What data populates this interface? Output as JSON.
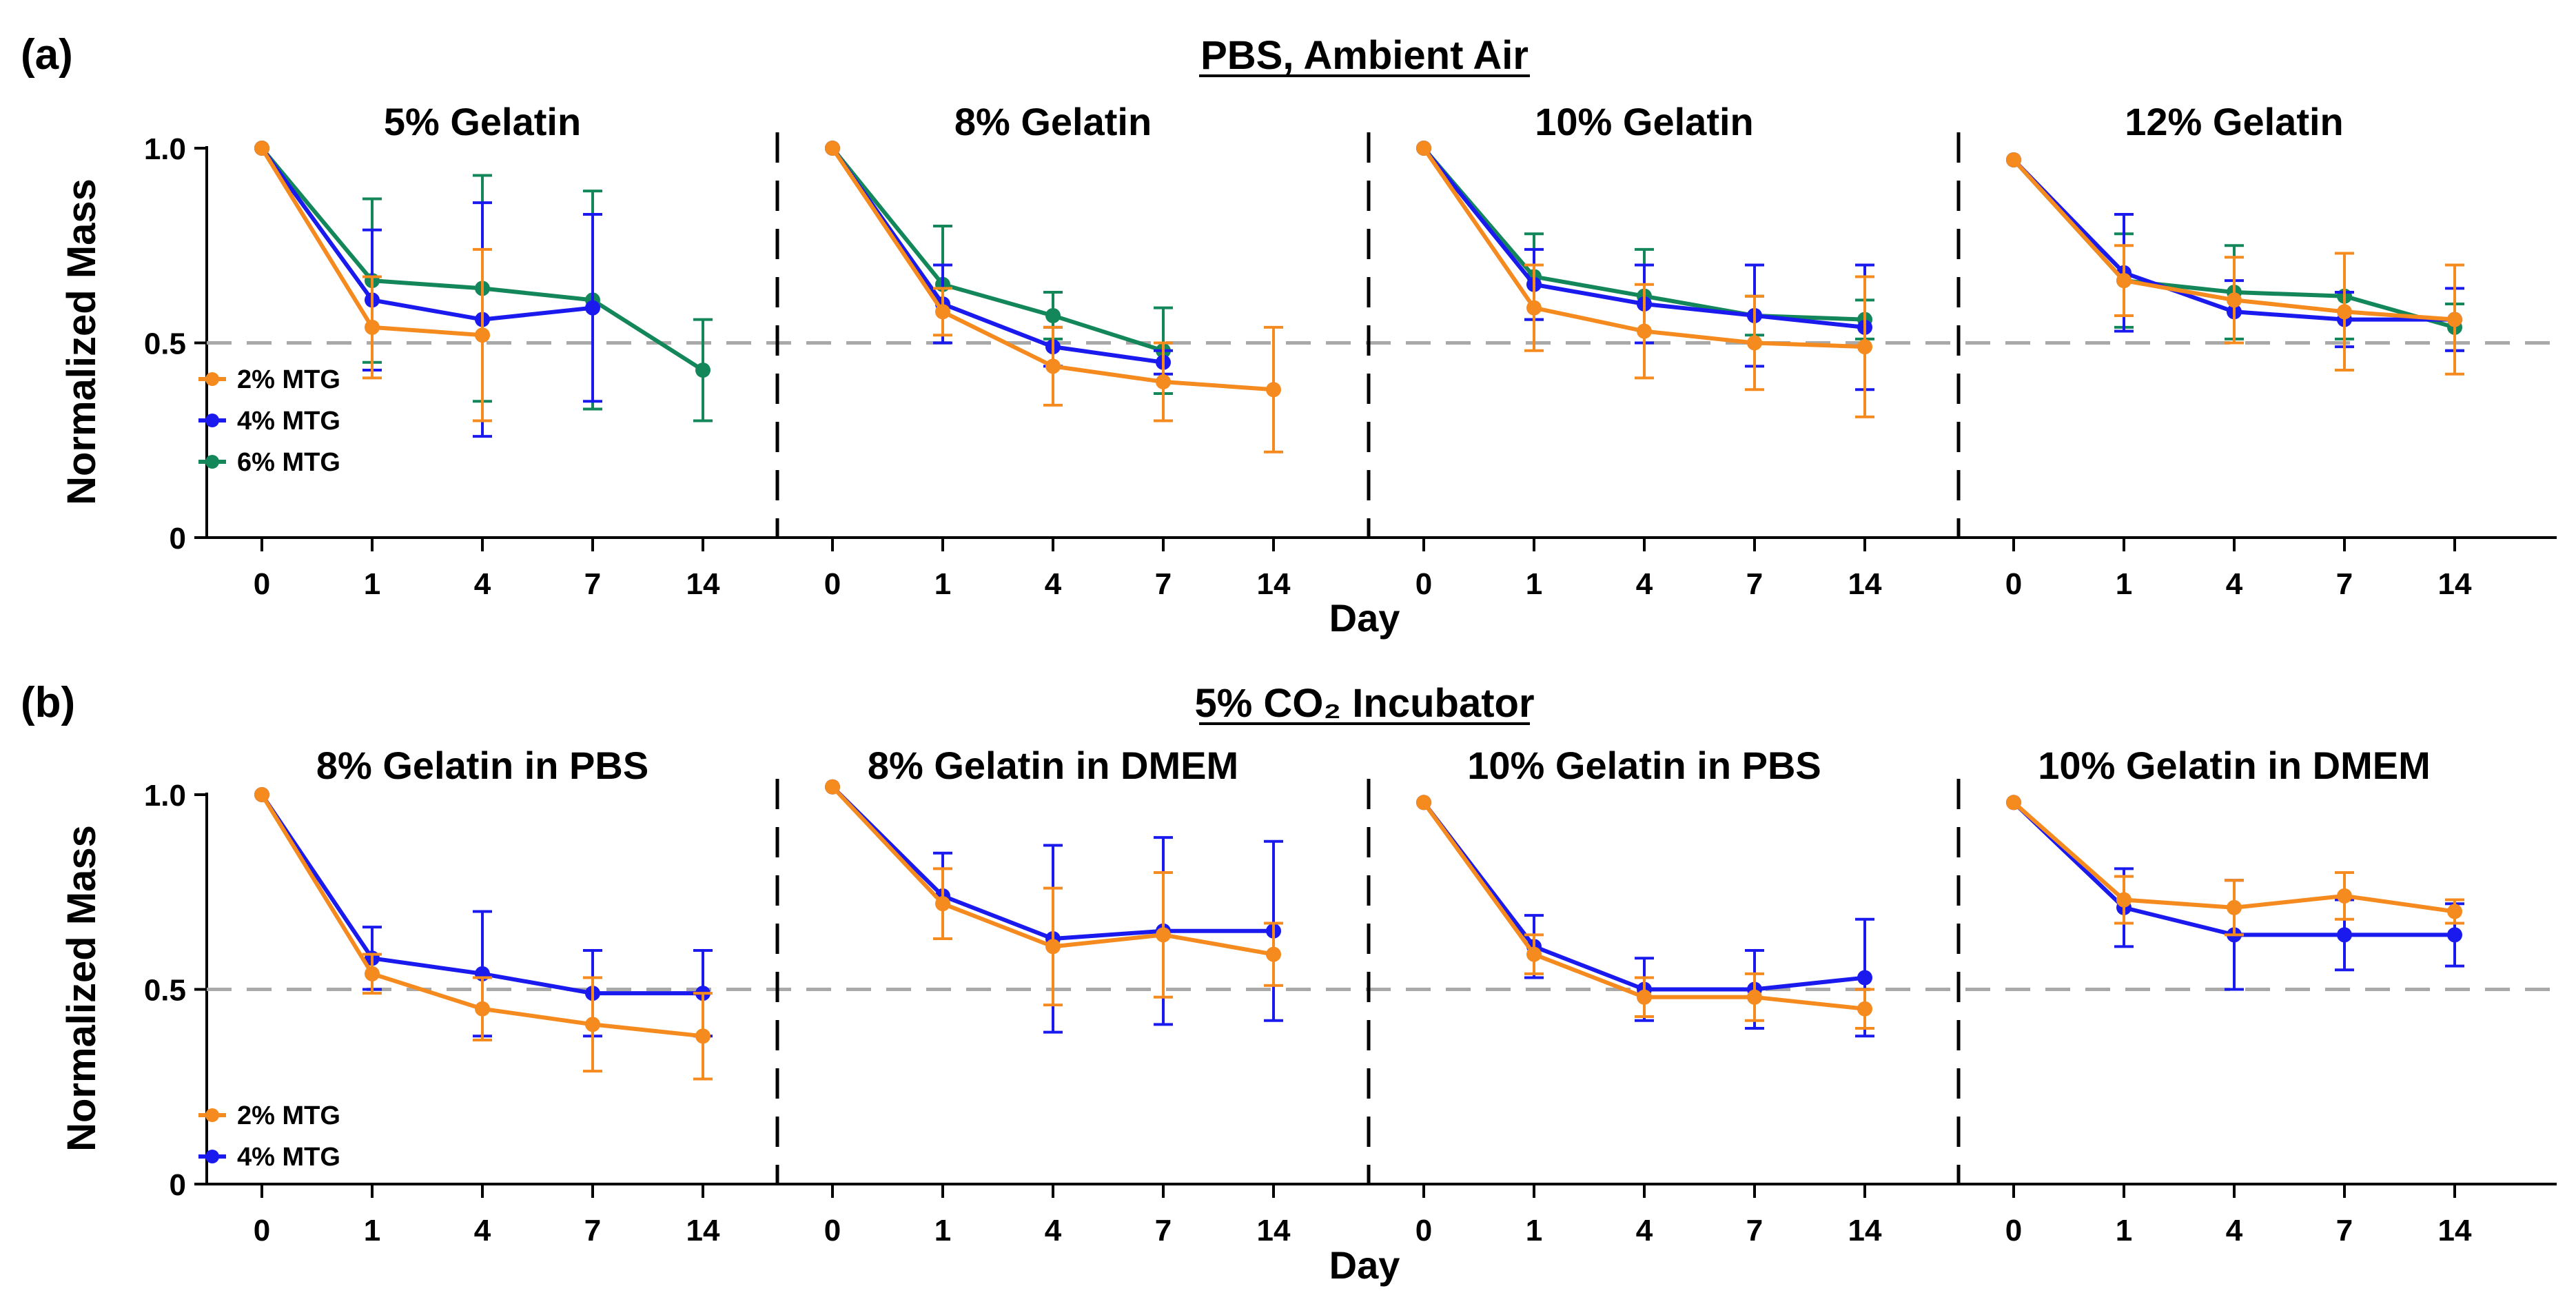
{
  "chart_data": {
    "type": "line",
    "x_categories": [
      "0",
      "1",
      "4",
      "7",
      "14"
    ],
    "ylim": [
      0,
      1.1
    ],
    "yticks": [
      "0",
      "0.5",
      "1.0"
    ],
    "ylabel": "Normalized Mass",
    "xlabel": "Day",
    "reference_line": 0.5,
    "colors": {
      "2% MTG": "#f58a1f",
      "4% MTG": "#1a1aee",
      "6% MTG": "#14875a"
    },
    "rows": [
      {
        "label": "(a)",
        "title": "PBS, Ambient Air",
        "legend": [
          "2% MTG",
          "4% MTG",
          "6% MTG"
        ],
        "panels": [
          {
            "title": "5% Gelatin",
            "series": [
              {
                "name": "6% MTG",
                "values": [
                  1.0,
                  0.66,
                  0.64,
                  0.61,
                  0.43
                ],
                "errors": [
                  0,
                  0.21,
                  0.29,
                  0.28,
                  0.13
                ]
              },
              {
                "name": "4% MTG",
                "values": [
                  1.0,
                  0.61,
                  0.56,
                  0.59,
                  null
                ],
                "errors": [
                  0,
                  0.18,
                  0.3,
                  0.24,
                  null
                ]
              },
              {
                "name": "2% MTG",
                "values": [
                  1.0,
                  0.54,
                  0.52,
                  null,
                  null
                ],
                "errors": [
                  0,
                  0.13,
                  0.22,
                  null,
                  null
                ]
              }
            ]
          },
          {
            "title": "8% Gelatin",
            "series": [
              {
                "name": "6% MTG",
                "values": [
                  1.0,
                  0.65,
                  0.57,
                  0.48,
                  null
                ],
                "errors": [
                  0,
                  0.15,
                  0.06,
                  0.11,
                  null
                ]
              },
              {
                "name": "4% MTG",
                "values": [
                  1.0,
                  0.6,
                  0.49,
                  0.45,
                  null
                ],
                "errors": [
                  0,
                  0.1,
                  0.05,
                  0.03,
                  null
                ]
              },
              {
                "name": "2% MTG",
                "values": [
                  1.0,
                  0.58,
                  0.44,
                  0.4,
                  0.38
                ],
                "errors": [
                  0,
                  0.06,
                  0.1,
                  0.1,
                  0.16
                ]
              }
            ]
          },
          {
            "title": "10% Gelatin",
            "series": [
              {
                "name": "6% MTG",
                "values": [
                  1.0,
                  0.67,
                  0.62,
                  0.57,
                  0.56
                ],
                "errors": [
                  0,
                  0.11,
                  0.12,
                  0.05,
                  0.05
                ]
              },
              {
                "name": "4% MTG",
                "values": [
                  1.0,
                  0.65,
                  0.6,
                  0.57,
                  0.54
                ],
                "errors": [
                  0,
                  0.09,
                  0.1,
                  0.13,
                  0.16
                ]
              },
              {
                "name": "2% MTG",
                "values": [
                  1.0,
                  0.59,
                  0.53,
                  0.5,
                  0.49
                ],
                "errors": [
                  0,
                  0.11,
                  0.12,
                  0.12,
                  0.18
                ]
              }
            ]
          },
          {
            "title": "12% Gelatin",
            "series": [
              {
                "name": "6% MTG",
                "values": [
                  0.97,
                  0.66,
                  0.63,
                  0.62,
                  0.54
                ],
                "errors": [
                  0,
                  0.12,
                  0.12,
                  0.11,
                  0.06
                ]
              },
              {
                "name": "4% MTG",
                "values": [
                  0.97,
                  0.68,
                  0.58,
                  0.56,
                  0.56
                ],
                "errors": [
                  0,
                  0.15,
                  0.08,
                  0.07,
                  0.08
                ]
              },
              {
                "name": "2% MTG",
                "values": [
                  0.97,
                  0.66,
                  0.61,
                  0.58,
                  0.56
                ],
                "errors": [
                  0,
                  0.09,
                  0.11,
                  0.15,
                  0.14
                ]
              }
            ]
          }
        ]
      },
      {
        "label": "(b)",
        "title": "5% CO₂ Incubator",
        "legend": [
          "2% MTG",
          "4% MTG"
        ],
        "panels": [
          {
            "title": "8% Gelatin in PBS",
            "series": [
              {
                "name": "4% MTG",
                "values": [
                  1.0,
                  0.58,
                  0.54,
                  0.49,
                  0.49
                ],
                "errors": [
                  0,
                  0.08,
                  0.16,
                  0.11,
                  0.11
                ]
              },
              {
                "name": "2% MTG",
                "values": [
                  1.0,
                  0.54,
                  0.45,
                  0.41,
                  0.38
                ],
                "errors": [
                  0,
                  0.05,
                  0.08,
                  0.12,
                  0.11
                ]
              }
            ]
          },
          {
            "title": "8% Gelatin in DMEM",
            "series": [
              {
                "name": "4% MTG",
                "values": [
                  1.02,
                  0.74,
                  0.63,
                  0.65,
                  0.65
                ],
                "errors": [
                  0,
                  0.11,
                  0.24,
                  0.24,
                  0.23
                ]
              },
              {
                "name": "2% MTG",
                "values": [
                  1.02,
                  0.72,
                  0.61,
                  0.64,
                  0.59
                ],
                "errors": [
                  0,
                  0.09,
                  0.15,
                  0.16,
                  0.08
                ]
              }
            ]
          },
          {
            "title": "10% Gelatin in PBS",
            "series": [
              {
                "name": "4% MTG",
                "values": [
                  0.98,
                  0.61,
                  0.5,
                  0.5,
                  0.53
                ],
                "errors": [
                  0,
                  0.08,
                  0.08,
                  0.1,
                  0.15
                ]
              },
              {
                "name": "2% MTG",
                "values": [
                  0.98,
                  0.59,
                  0.48,
                  0.48,
                  0.45
                ],
                "errors": [
                  0,
                  0.05,
                  0.05,
                  0.06,
                  0.05
                ]
              }
            ]
          },
          {
            "title": "10% Gelatin in DMEM",
            "series": [
              {
                "name": "4% MTG",
                "values": [
                  0.98,
                  0.71,
                  0.64,
                  0.64,
                  0.64
                ],
                "errors": [
                  0,
                  0.1,
                  0.14,
                  0.09,
                  0.08
                ]
              },
              {
                "name": "2% MTG",
                "values": [
                  0.98,
                  0.73,
                  0.71,
                  0.74,
                  0.7
                ],
                "errors": [
                  0,
                  0.06,
                  0.07,
                  0.06,
                  0.03
                ]
              }
            ]
          }
        ]
      }
    ]
  }
}
